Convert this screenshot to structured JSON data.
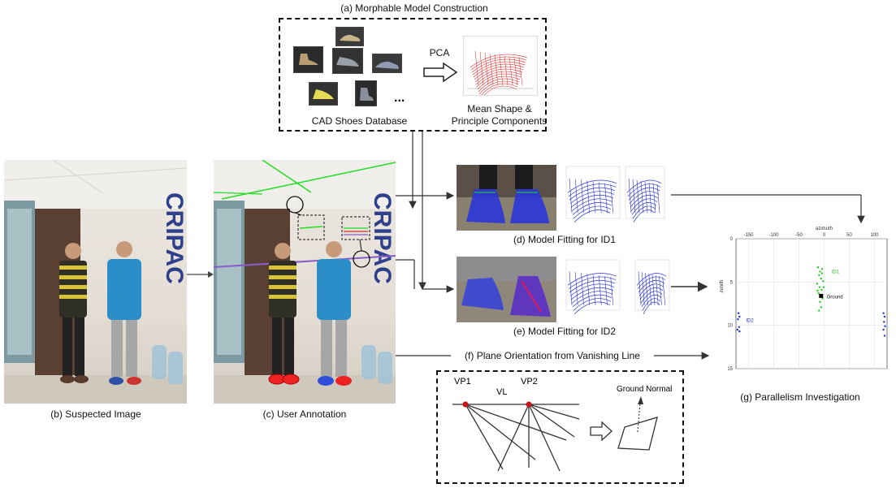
{
  "section_a": {
    "title": "(a) Morphable Model Construction",
    "db_label": "CAD Shoes Database",
    "pca_label": "PCA",
    "ellipsis": "...",
    "mean_shape_line1": "Mean Shape &",
    "mean_shape_line2": "Principle Components"
  },
  "section_b": {
    "caption": "(b) Suspected Image",
    "sign_text": "CRIPAC"
  },
  "section_c": {
    "caption": "(c) User Annotation",
    "sign_text": "CRIPAC"
  },
  "section_d": {
    "caption": "(d) Model Fitting for ID1"
  },
  "section_e": {
    "caption": "(e) Model Fitting for ID2"
  },
  "section_f": {
    "caption": "(f) Plane Orientation from Vanishing Line",
    "vp1": "VP1",
    "vl": "VL",
    "vp2": "VP2",
    "ground_normal": "Ground Normal"
  },
  "section_g": {
    "caption": "(g) Parallelism Investigation",
    "plot_title": "azimuth",
    "y_axis_label": "zenith",
    "x_ticks": [
      "-150",
      "-100",
      "-50",
      "0",
      "50",
      "100"
    ],
    "y_ticks": [
      "0",
      "5",
      "10",
      "15"
    ],
    "labels": {
      "id1": "ID1",
      "id2": "ID2",
      "ground": "Ground"
    },
    "colors": {
      "id1": "#22cc22",
      "id2": "#2233cc",
      "ground": "#000000"
    }
  },
  "colors": {
    "annotation_green": "#22dd22",
    "model_blue": "#2a35d8",
    "pca_red": "#e02020",
    "vp_red": "#cc1111"
  }
}
